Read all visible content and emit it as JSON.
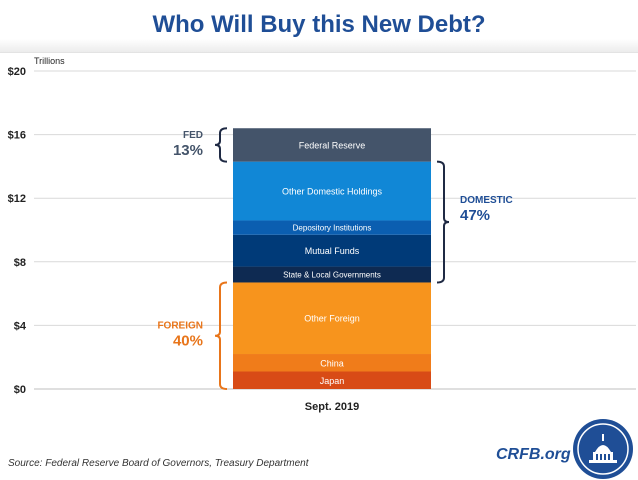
{
  "title": "Who Will Buy this New Debt?",
  "source": "Source: Federal Reserve Board of Governors, Treasury Department",
  "site": "CRFB.org",
  "chart_data": {
    "type": "bar",
    "stacked": true,
    "unit_label": "Trillions",
    "categories": [
      "Sept. 2019"
    ],
    "yticks": [
      "$0",
      "$4",
      "$8",
      "$12",
      "$16",
      "$20"
    ],
    "ylim": [
      0,
      20
    ],
    "grid": true,
    "series": [
      {
        "name": "Japan",
        "value": 1.1,
        "color": "#d84b16"
      },
      {
        "name": "China",
        "value": 1.1,
        "color": "#f07c1a"
      },
      {
        "name": "Other Foreign",
        "value": 4.5,
        "color": "#f7941d"
      },
      {
        "name": "State & Local Governments",
        "value": 1.0,
        "color": "#0e2a52"
      },
      {
        "name": "Mutual Funds",
        "value": 2.0,
        "color": "#003a78"
      },
      {
        "name": "Depository Institutions",
        "value": 0.9,
        "color": "#0b5eb0"
      },
      {
        "name": "Other Domestic Holdings",
        "value": 3.7,
        "color": "#1187d6"
      },
      {
        "name": "Federal Reserve",
        "value": 2.1,
        "color": "#44546a"
      }
    ],
    "groups": [
      {
        "name": "FED",
        "share": "13%",
        "color": "#44546a",
        "from": 7,
        "to": 7
      },
      {
        "name": "DOMESTIC",
        "share": "47%",
        "color": "#1f4e96",
        "from": 3,
        "to": 6
      },
      {
        "name": "FOREIGN",
        "share": "40%",
        "color": "#e8751a",
        "from": 0,
        "to": 2
      }
    ]
  }
}
